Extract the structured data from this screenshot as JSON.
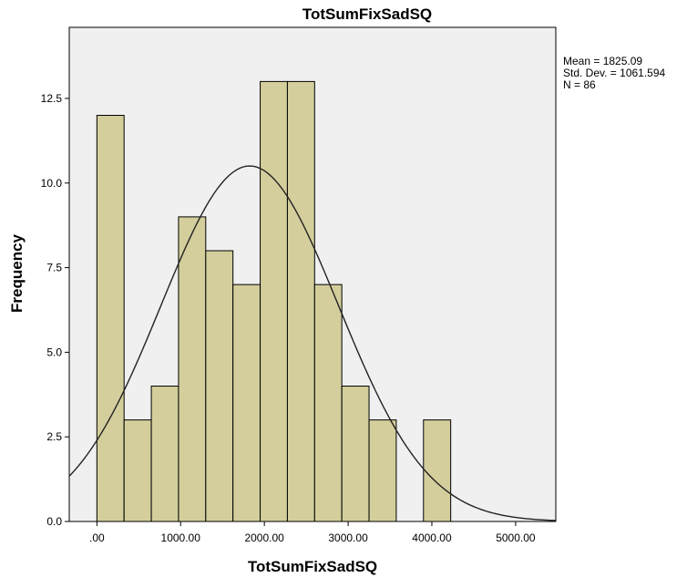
{
  "chart_data": {
    "type": "bar",
    "title": "TotSumFixSadSQ",
    "xlabel": "TotSumFixSadSQ",
    "ylabel": "Frequency",
    "bin_width": 325,
    "bins": [
      {
        "start": 0,
        "end": 325,
        "count": 12
      },
      {
        "start": 325,
        "end": 650,
        "count": 3
      },
      {
        "start": 650,
        "end": 975,
        "count": 4
      },
      {
        "start": 975,
        "end": 1300,
        "count": 9
      },
      {
        "start": 1300,
        "end": 1625,
        "count": 8
      },
      {
        "start": 1625,
        "end": 1950,
        "count": 7
      },
      {
        "start": 1950,
        "end": 2275,
        "count": 13
      },
      {
        "start": 2275,
        "end": 2600,
        "count": 13
      },
      {
        "start": 2600,
        "end": 2925,
        "count": 7
      },
      {
        "start": 2925,
        "end": 3250,
        "count": 4
      },
      {
        "start": 3250,
        "end": 3575,
        "count": 3
      },
      {
        "start": 3575,
        "end": 3900,
        "count": 0
      },
      {
        "start": 3900,
        "end": 4225,
        "count": 3
      }
    ],
    "xlim": [
      -330,
      5480
    ],
    "ylim": [
      0,
      14.6
    ],
    "x_ticks": [
      {
        "value": 0,
        "label": ".00"
      },
      {
        "value": 1000,
        "label": "1000.00"
      },
      {
        "value": 2000,
        "label": "2000.00"
      },
      {
        "value": 3000,
        "label": "3000.00"
      },
      {
        "value": 4000,
        "label": "4000.00"
      },
      {
        "value": 5000,
        "label": "5000.00"
      }
    ],
    "y_ticks": [
      {
        "value": 0,
        "label": "0.0"
      },
      {
        "value": 2.5,
        "label": "2.5"
      },
      {
        "value": 5,
        "label": "5.0"
      },
      {
        "value": 7.5,
        "label": "7.5"
      },
      {
        "value": 10,
        "label": "10.0"
      },
      {
        "value": 12.5,
        "label": "12.5"
      }
    ],
    "normal_curve": {
      "mean": 1825.09,
      "std_dev": 1061.594,
      "n": 86
    },
    "grid": false,
    "bar_color": "#d3ce9c",
    "plot_background": "#f0f0f0",
    "stats_text": {
      "mean": "Mean = 1825.09",
      "std_dev": "Std. Dev. = 1061.594",
      "n": "N = 86"
    }
  }
}
